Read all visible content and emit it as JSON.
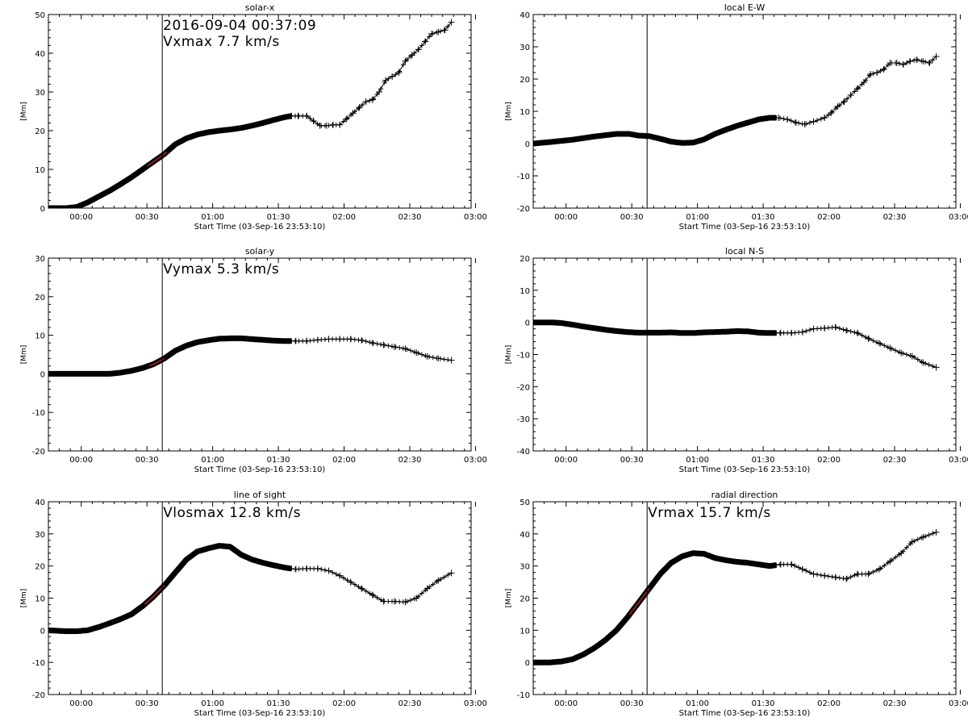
{
  "chart_data": [
    {
      "type": "line",
      "title": "solar-x",
      "xlabel": "Start Time (03-Sep-16 23:53:10)",
      "ylabel": "[Mm]",
      "xlim_minutes": [
        -8,
        185
      ],
      "ylim": [
        0,
        50
      ],
      "yticks": [
        0,
        10,
        20,
        30,
        40,
        50
      ],
      "xtick_minutes": [
        7,
        37,
        67,
        97,
        127,
        157,
        187
      ],
      "xtick_labels": [
        "00:00",
        "00:30",
        "01:00",
        "01:30",
        "02:00",
        "02:30",
        "03:00"
      ],
      "marker_minute": 44,
      "annotations": [
        "2016-09-04 00:37:09",
        "Vxmax    7.7 km/s"
      ],
      "highlight_range": [
        37,
        46
      ],
      "marker_start_minute": 103,
      "series": [
        {
          "x": [
            -8,
            0,
            5,
            10,
            15,
            20,
            25,
            30,
            35,
            40,
            45,
            50,
            55,
            60,
            65,
            70,
            75,
            80,
            85,
            90,
            95,
            100,
            103,
            106,
            110,
            113,
            116,
            119,
            122,
            125,
            128,
            131,
            134,
            137,
            140,
            143,
            146,
            149,
            152,
            155,
            158,
            161,
            164,
            167,
            170,
            173,
            176
          ],
          "y": [
            0,
            0,
            0.3,
            1.5,
            3,
            4.5,
            6.2,
            8,
            10,
            12,
            14,
            16.5,
            18,
            19,
            19.6,
            20,
            20.3,
            20.7,
            21.3,
            22,
            22.8,
            23.5,
            23.8,
            23.8,
            23.8,
            22.5,
            21.3,
            21.3,
            21.5,
            21.5,
            23,
            24.5,
            26,
            27.5,
            28,
            30,
            33,
            34,
            35,
            38,
            39.5,
            41,
            43,
            45,
            45.5,
            46,
            48
          ]
        }
      ]
    },
    {
      "type": "line",
      "title": "local E-W",
      "xlabel": "Start Time (03-Sep-16 23:53:10)",
      "ylabel": "[Mm]",
      "xlim_minutes": [
        -8,
        185
      ],
      "ylim": [
        -20,
        40
      ],
      "yticks": [
        -20,
        -10,
        0,
        10,
        20,
        30,
        40
      ],
      "xtick_minutes": [
        7,
        37,
        67,
        97,
        127,
        157,
        187
      ],
      "xtick_labels": [
        "00:00",
        "00:30",
        "01:00",
        "01:30",
        "02:00",
        "02:30",
        "03:00"
      ],
      "marker_minute": 44,
      "annotations": [],
      "marker_start_minute": 103,
      "series": [
        {
          "x": [
            -8,
            0,
            10,
            20,
            30,
            36,
            40,
            45,
            50,
            55,
            60,
            65,
            70,
            75,
            80,
            85,
            90,
            95,
            100,
            104,
            108,
            112,
            116,
            120,
            125,
            128,
            131,
            134,
            137,
            140,
            143,
            146,
            149,
            152,
            155,
            158,
            161,
            164,
            167,
            170,
            173,
            176
          ],
          "y": [
            0,
            0.5,
            1.2,
            2.2,
            3,
            3,
            2.5,
            2.3,
            1.5,
            0.6,
            0.2,
            0.3,
            1.3,
            3,
            4.3,
            5.5,
            6.5,
            7.5,
            8,
            8,
            7.5,
            6.5,
            6,
            6.8,
            8,
            9.5,
            11.5,
            13,
            15,
            17,
            19,
            21.5,
            22,
            23,
            25,
            25,
            24.5,
            25.5,
            26,
            25.5,
            25,
            27
          ]
        }
      ]
    },
    {
      "type": "line",
      "title": "solar-y",
      "xlabel": "Start Time (03-Sep-16 23:53:10)",
      "ylabel": "[Mm]",
      "xlim_minutes": [
        -8,
        185
      ],
      "ylim": [
        -20,
        30
      ],
      "yticks": [
        -20,
        -10,
        0,
        10,
        20,
        30
      ],
      "xtick_minutes": [
        7,
        37,
        67,
        97,
        127,
        157,
        187
      ],
      "xtick_labels": [
        "00:00",
        "00:30",
        "01:00",
        "01:30",
        "02:00",
        "02:30",
        "03:00"
      ],
      "marker_minute": 44,
      "annotations": [
        "Vymax    5.3 km/s"
      ],
      "highlight_range": [
        38,
        45
      ],
      "marker_start_minute": 103,
      "series": [
        {
          "x": [
            -8,
            0,
            10,
            20,
            25,
            30,
            35,
            40,
            45,
            50,
            55,
            60,
            65,
            70,
            75,
            80,
            85,
            90,
            95,
            100,
            105,
            110,
            115,
            120,
            125,
            130,
            135,
            140,
            145,
            150,
            155,
            160,
            165,
            170,
            176
          ],
          "y": [
            0,
            0,
            0,
            0,
            0.3,
            0.8,
            1.5,
            2.5,
            4,
            6,
            7.3,
            8.2,
            8.7,
            9.1,
            9.2,
            9.2,
            9,
            8.8,
            8.6,
            8.5,
            8.5,
            8.5,
            8.8,
            9,
            9,
            9,
            8.7,
            8,
            7.5,
            7,
            6.5,
            5.5,
            4.5,
            4,
            3.5
          ]
        }
      ]
    },
    {
      "type": "line",
      "title": "local N-S",
      "xlabel": "Start Time (03-Sep-16 23:53:10)",
      "ylabel": "[Mm]",
      "xlim_minutes": [
        -8,
        185
      ],
      "ylim": [
        -40,
        20
      ],
      "yticks": [
        -40,
        -30,
        -20,
        -10,
        0,
        10,
        20
      ],
      "xtick_minutes": [
        7,
        37,
        67,
        97,
        127,
        157,
        187
      ],
      "xtick_labels": [
        "00:00",
        "00:30",
        "01:00",
        "01:30",
        "02:00",
        "02:30",
        "03:00"
      ],
      "marker_minute": 44,
      "annotations": [],
      "marker_start_minute": 103,
      "series": [
        {
          "x": [
            -8,
            0,
            5,
            10,
            15,
            20,
            25,
            30,
            35,
            40,
            45,
            50,
            55,
            60,
            65,
            70,
            75,
            80,
            85,
            90,
            95,
            100,
            105,
            110,
            115,
            120,
            125,
            130,
            135,
            140,
            145,
            150,
            155,
            160,
            165,
            170,
            176
          ],
          "y": [
            0,
            0,
            -0.2,
            -0.7,
            -1.3,
            -1.8,
            -2.3,
            -2.7,
            -3,
            -3.2,
            -3.2,
            -3.2,
            -3.1,
            -3.3,
            -3.3,
            -3.1,
            -3,
            -2.9,
            -2.7,
            -2.8,
            -3.2,
            -3.3,
            -3.3,
            -3.3,
            -3,
            -2,
            -1.8,
            -1.5,
            -2.5,
            -3.3,
            -5,
            -6.5,
            -8,
            -9.5,
            -10.5,
            -12.5,
            -14
          ]
        }
      ]
    },
    {
      "type": "line",
      "title": "line of sight",
      "xlabel": "Start Time (03-Sep-16 23:53:10)",
      "ylabel": "[Mm]",
      "xlim_minutes": [
        -8,
        185
      ],
      "ylim": [
        -20,
        40
      ],
      "yticks": [
        -20,
        -10,
        0,
        10,
        20,
        30,
        40
      ],
      "xtick_minutes": [
        7,
        37,
        67,
        97,
        127,
        157,
        187
      ],
      "xtick_labels": [
        "00:00",
        "00:30",
        "01:00",
        "01:30",
        "02:00",
        "02:30",
        "03:00"
      ],
      "marker_minute": 44,
      "annotations": [
        "Vlosmax    12.8 km/s"
      ],
      "highlight_range": [
        36,
        45
      ],
      "marker_start_minute": 103,
      "series": [
        {
          "x": [
            -8,
            0,
            5,
            10,
            15,
            20,
            25,
            30,
            35,
            40,
            45,
            50,
            55,
            60,
            65,
            70,
            75,
            80,
            85,
            90,
            95,
            100,
            105,
            110,
            115,
            120,
            125,
            130,
            135,
            140,
            145,
            150,
            155,
            160,
            165,
            170,
            176
          ],
          "y": [
            0,
            -0.3,
            -0.3,
            0,
            1,
            2.2,
            3.5,
            5,
            7.5,
            10.5,
            14,
            18,
            22,
            24.5,
            25.5,
            26.3,
            26,
            23.5,
            22,
            21,
            20.2,
            19.5,
            19,
            19.2,
            19.2,
            18.5,
            17,
            15,
            13,
            11,
            9,
            9,
            8.8,
            10,
            13,
            15.5,
            17.8
          ]
        }
      ]
    },
    {
      "type": "line",
      "title": "radial direction",
      "xlabel": "Start Time (03-Sep-16 23:53:10)",
      "ylabel": "[Mm]",
      "xlim_minutes": [
        -8,
        185
      ],
      "ylim": [
        -10,
        50
      ],
      "yticks": [
        -10,
        0,
        10,
        20,
        30,
        40,
        50
      ],
      "xtick_minutes": [
        7,
        37,
        67,
        97,
        127,
        157,
        187
      ],
      "xtick_labels": [
        "00:00",
        "00:30",
        "01:00",
        "01:30",
        "02:00",
        "02:30",
        "03:00"
      ],
      "marker_minute": 44,
      "annotations": [
        "Vrmax    15.7 km/s"
      ],
      "highlight_range": [
        36,
        45
      ],
      "marker_start_minute": 103,
      "series": [
        {
          "x": [
            -8,
            0,
            5,
            10,
            15,
            20,
            25,
            30,
            35,
            40,
            45,
            50,
            55,
            60,
            65,
            70,
            75,
            80,
            85,
            90,
            95,
            100,
            105,
            110,
            115,
            120,
            125,
            130,
            135,
            140,
            145,
            150,
            155,
            160,
            165,
            170,
            176
          ],
          "y": [
            0,
            0,
            0.3,
            1,
            2.5,
            4.5,
            7,
            10,
            14,
            18.5,
            23,
            27.5,
            31,
            33,
            34,
            33.8,
            32.5,
            31.8,
            31.3,
            31,
            30.5,
            30,
            30.5,
            30.5,
            29,
            27.5,
            27,
            26.5,
            26,
            27.5,
            27.5,
            29,
            31.5,
            34,
            37.5,
            39,
            40.5
          ]
        }
      ]
    }
  ]
}
